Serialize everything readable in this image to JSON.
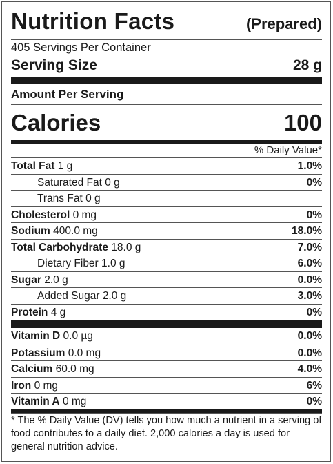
{
  "header": {
    "title": "Nutrition Facts",
    "prepared": "(Prepared)"
  },
  "servings_per_container": "405 Servings Per Container",
  "serving_size": {
    "label": "Serving Size",
    "value": "28 g"
  },
  "amount_per_serving": "Amount Per Serving",
  "calories": {
    "label": "Calories",
    "value": "100"
  },
  "daily_value_header": "% Daily Value*",
  "nutrients": [
    {
      "name": "Total Fat",
      "amount": "1 g",
      "dv": "1.0%",
      "bold": true,
      "indent": false
    },
    {
      "name": "Saturated Fat",
      "amount": "0 g",
      "dv": "0%",
      "bold": false,
      "indent": true
    },
    {
      "name": "Trans Fat",
      "amount": "0 g",
      "dv": "",
      "bold": false,
      "indent": true
    },
    {
      "name": "Cholesterol",
      "amount": "0 mg",
      "dv": "0%",
      "bold": true,
      "indent": false
    },
    {
      "name": "Sodium",
      "amount": "400.0 mg",
      "dv": "18.0%",
      "bold": true,
      "indent": false
    },
    {
      "name": "Total Carbohydrate",
      "amount": "18.0 g",
      "dv": "7.0%",
      "bold": true,
      "indent": false
    },
    {
      "name": "Dietary Fiber",
      "amount": "1.0 g",
      "dv": "6.0%",
      "bold": false,
      "indent": true
    },
    {
      "name": "Sugar",
      "amount": "2.0 g",
      "dv": "0.0%",
      "bold": true,
      "indent": false
    },
    {
      "name": "Added Sugar",
      "amount": "2.0 g",
      "dv": "3.0%",
      "bold": false,
      "indent": true
    },
    {
      "name": "Protein",
      "amount": "4 g",
      "dv": "0%",
      "bold": true,
      "indent": false
    }
  ],
  "vitamins": [
    {
      "name": "Vitamin D",
      "amount": "0.0 µg",
      "dv": "0.0%"
    },
    {
      "name": "Potassium",
      "amount": "0.0 mg",
      "dv": "0.0%"
    },
    {
      "name": "Calcium",
      "amount": "60.0 mg",
      "dv": "4.0%"
    },
    {
      "name": "Iron",
      "amount": "0 mg",
      "dv": "6%"
    },
    {
      "name": "Vitamin A",
      "amount": "0 mg",
      "dv": "0%"
    }
  ],
  "footnote": "* The % Daily Value (DV) tells you how much a nutrient in a serving of food contributes to a daily diet. 2,000 calories a day is used for general nutrition advice."
}
